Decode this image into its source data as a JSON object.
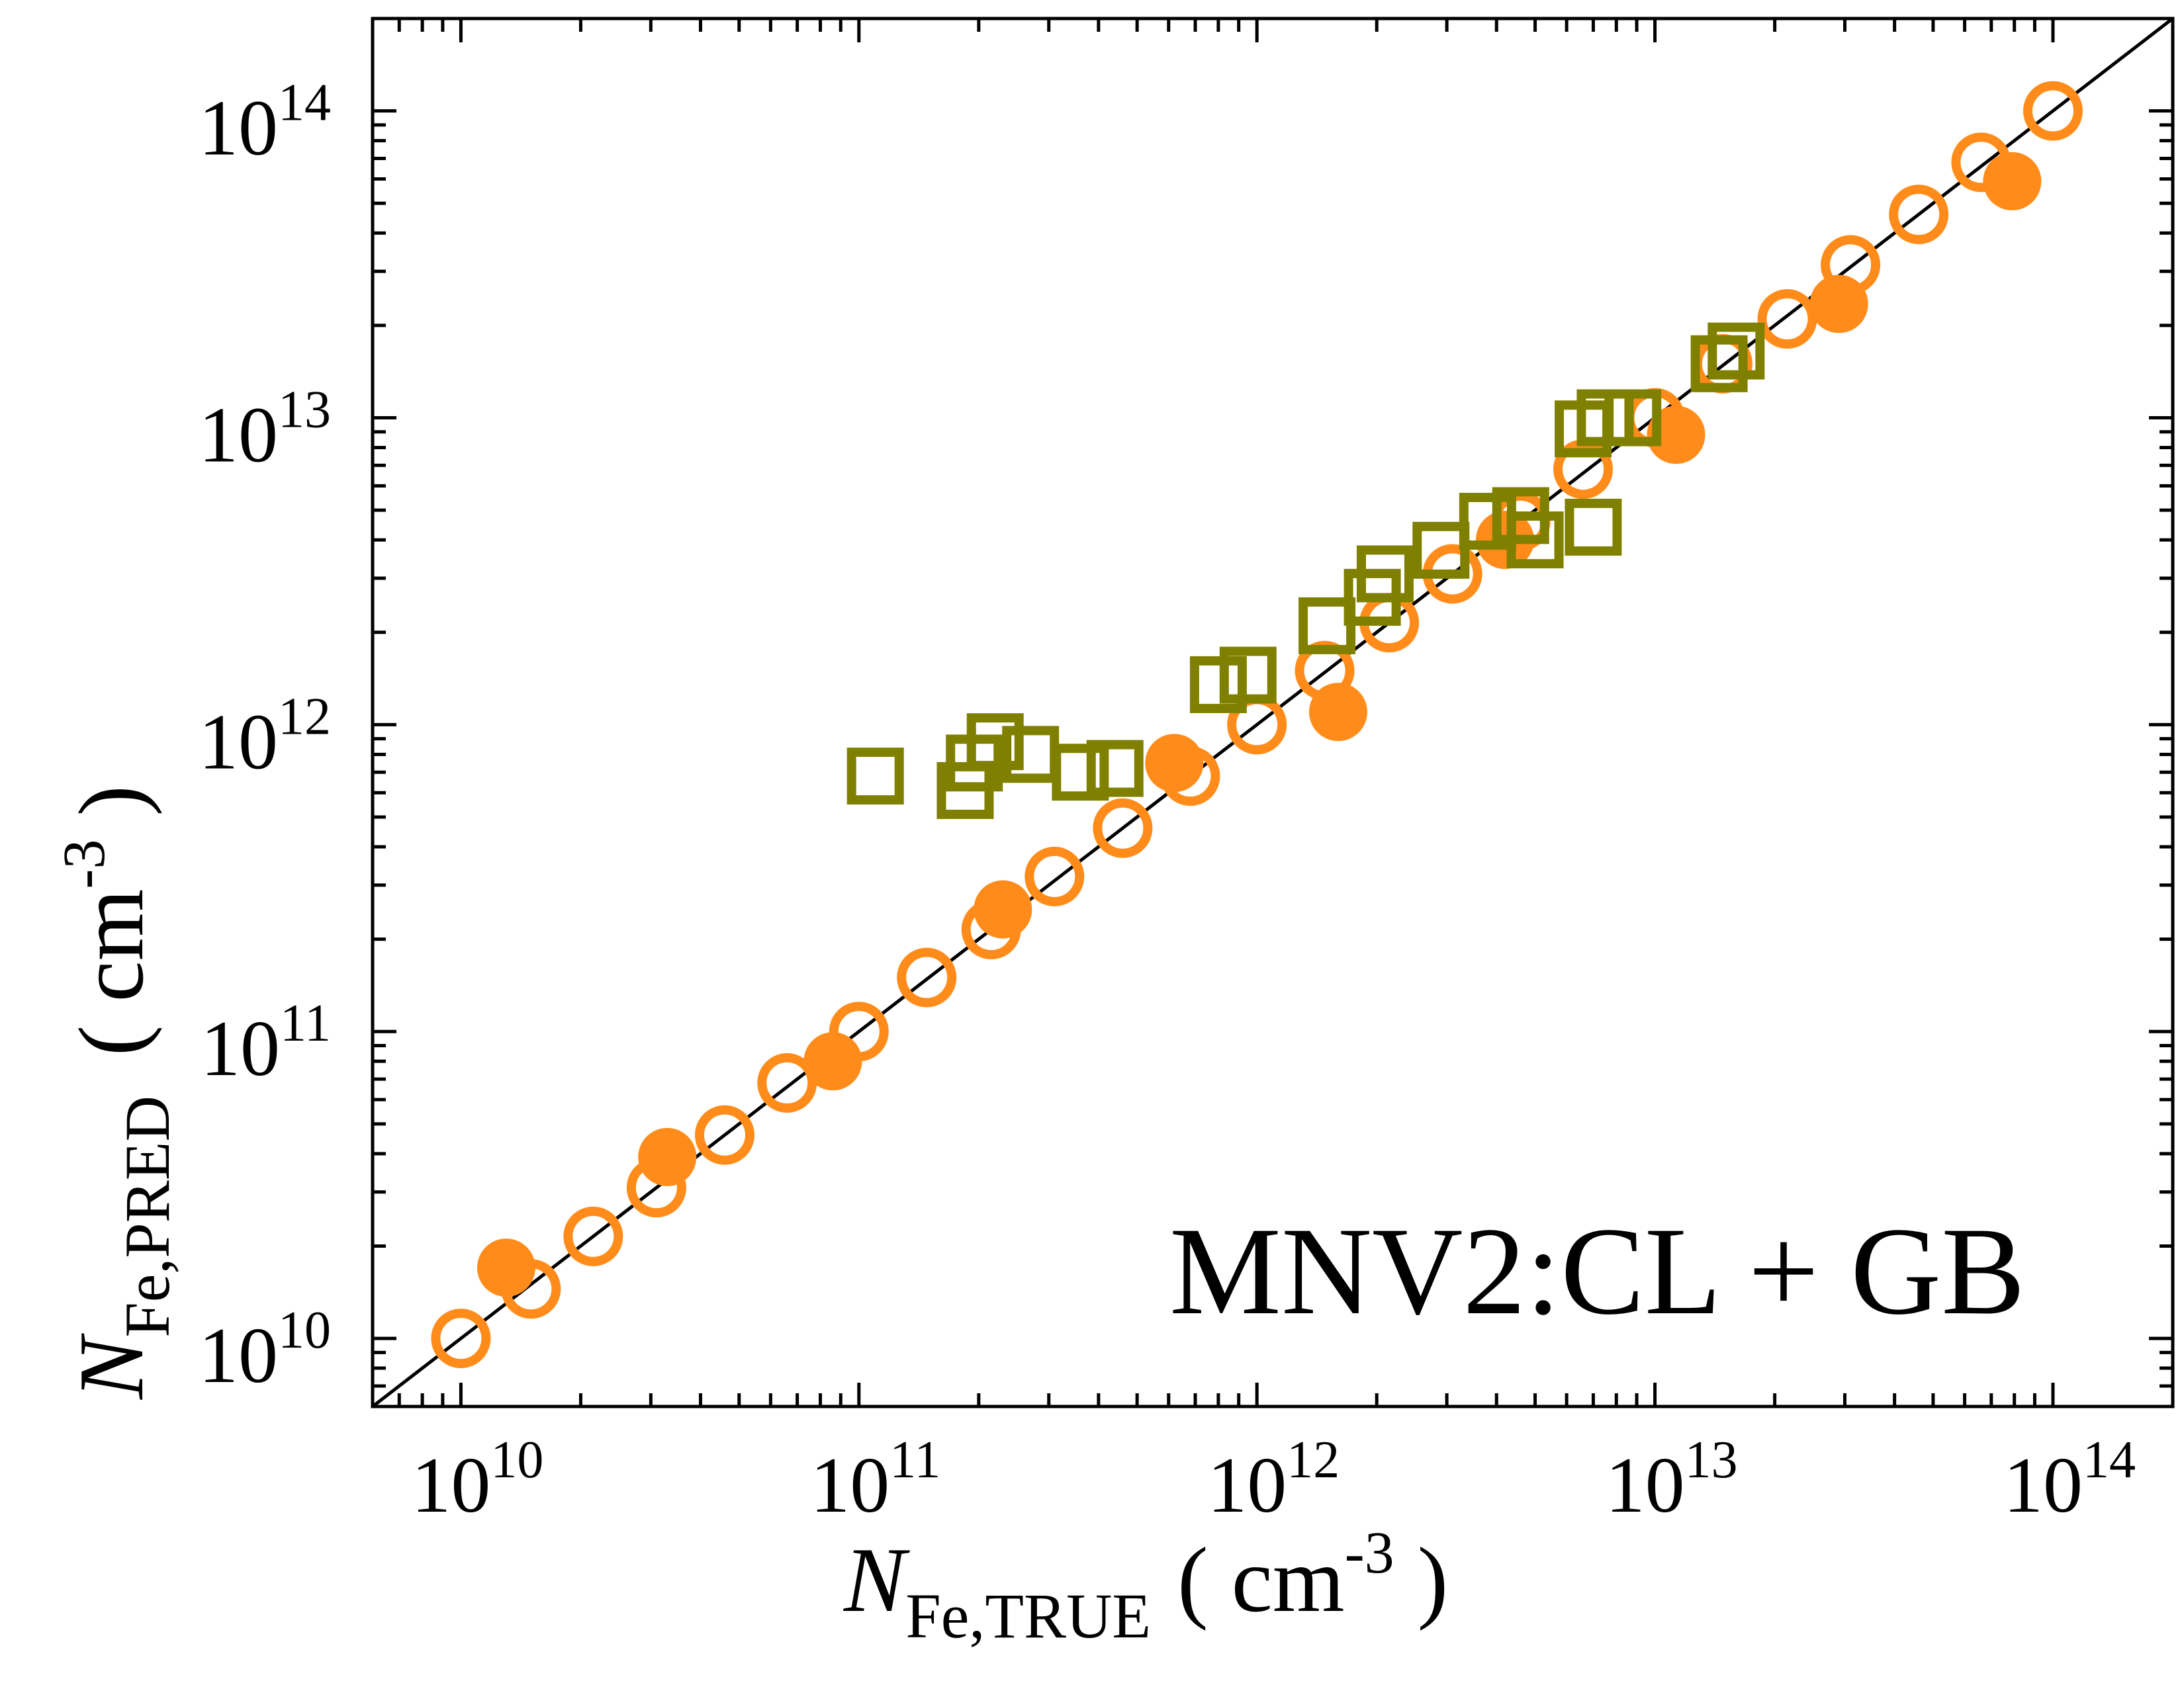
{
  "colors": {
    "orange": "#ff8c1a",
    "olive": "#808000",
    "axis": "#000000"
  },
  "chart_data": {
    "type": "scatter",
    "x_scale": "log",
    "y_scale": "log",
    "xlim": [
      6000000000.0,
      200000000000000.0
    ],
    "ylim": [
      6000000000.0,
      200000000000000.0
    ],
    "grid": false,
    "legend": "none",
    "x_ticks": [
      10000000000.0,
      100000000000.0,
      1000000000000.0,
      10000000000000.0,
      100000000000000.0
    ],
    "y_ticks": [
      10000000000.0,
      100000000000.0,
      1000000000000.0,
      10000000000000.0,
      100000000000000.0
    ],
    "tick_base": "10",
    "x_tick_exponents": [
      "10",
      "11",
      "12",
      "13",
      "14"
    ],
    "y_tick_exponents": [
      "10",
      "11",
      "12",
      "13",
      "14"
    ],
    "xlabel": {
      "symbol": "N",
      "subscript": "Fe,TRUE",
      "unit_open": "( cm",
      "unit_exp": "-3",
      "unit_close": " )"
    },
    "ylabel": {
      "symbol": "N",
      "subscript": "Fe,PRED",
      "unit_open": "( cm",
      "unit_exp": "-3",
      "unit_close": " )"
    },
    "annotation": "MNV2:CL + GB",
    "reference_line": {
      "type": "y=x"
    },
    "series": [
      {
        "marker": "open-circle",
        "color": "#ff8c1a",
        "points": [
          [
            10000000000.0,
            10000000000.0
          ],
          [
            15000000000.0,
            14500000000.0
          ],
          [
            21500000000.0,
            21500000000.0
          ],
          [
            31000000000.0,
            31000000000.0
          ],
          [
            46000000000.0,
            46000000000.0
          ],
          [
            66000000000.0,
            68000000000.0
          ],
          [
            100000000000.0,
            100000000000.0
          ],
          [
            148000000000.0,
            150000000000.0
          ],
          [
            215000000000.0,
            215000000000.0
          ],
          [
            310000000000.0,
            320000000000.0
          ],
          [
            460000000000.0,
            460000000000.0
          ],
          [
            680000000000.0,
            680000000000.0
          ],
          [
            1000000000000.0,
            1000000000000.0
          ],
          [
            1480000000000.0,
            1500000000000.0
          ],
          [
            2150000000000.0,
            2150000000000.0
          ],
          [
            3100000000000.0,
            3100000000000.0
          ],
          [
            4600000000000.0,
            4600000000000.0
          ],
          [
            6600000000000.0,
            6800000000000.0
          ],
          [
            10000000000000.0,
            10000000000000.0
          ],
          [
            14800000000000.0,
            15000000000000.0
          ],
          [
            21500000000000.0,
            21000000000000.0
          ],
          [
            31000000000000.0,
            31500000000000.0
          ],
          [
            46000000000000.0,
            46000000000000.0
          ],
          [
            66000000000000.0,
            68000000000000.0
          ],
          [
            100000000000000.0,
            100000000000000.0
          ]
        ]
      },
      {
        "marker": "filled-circle",
        "color": "#ff8c1a",
        "points": [
          [
            13000000000.0,
            17000000000.0
          ],
          [
            33000000000.0,
            39000000000.0
          ],
          [
            86000000000.0,
            80000000000.0
          ],
          [
            230000000000.0,
            250000000000.0
          ],
          [
            620000000000.0,
            750000000000.0
          ],
          [
            1600000000000.0,
            1100000000000.0
          ],
          [
            4200000000000.0,
            4000000000000.0
          ],
          [
            11300000000000.0,
            8800000000000.0
          ],
          [
            29000000000000.0,
            23500000000000.0
          ],
          [
            79000000000000.0,
            59000000000000.0
          ]
        ]
      },
      {
        "marker": "open-square",
        "color": "#808000",
        "points": [
          [
            110000000000.0,
            680000000000.0
          ],
          [
            185000000000.0,
            610000000000.0
          ],
          [
            195000000000.0,
            750000000000.0
          ],
          [
            220000000000.0,
            880000000000.0
          ],
          [
            270000000000.0,
            800000000000.0
          ],
          [
            360000000000.0,
            700000000000.0
          ],
          [
            440000000000.0,
            720000000000.0
          ],
          [
            800000000000.0,
            1350000000000.0
          ],
          [
            950000000000.0,
            1450000000000.0
          ],
          [
            1500000000000.0,
            2100000000000.0
          ],
          [
            1950000000000.0,
            2600000000000.0
          ],
          [
            2100000000000.0,
            3100000000000.0
          ],
          [
            2900000000000.0,
            3700000000000.0
          ],
          [
            3800000000000.0,
            4600000000000.0
          ],
          [
            4600000000000.0,
            4800000000000.0
          ],
          [
            5000000000000.0,
            4000000000000.0
          ],
          [
            7000000000000.0,
            4400000000000.0
          ],
          [
            6600000000000.0,
            9200000000000.0
          ],
          [
            7500000000000.0,
            10000000000000.0
          ],
          [
            8800000000000.0,
            10000000000000.0
          ],
          [
            14500000000000.0,
            15000000000000.0
          ],
          [
            16000000000000.0,
            16500000000000.0
          ]
        ]
      }
    ]
  }
}
